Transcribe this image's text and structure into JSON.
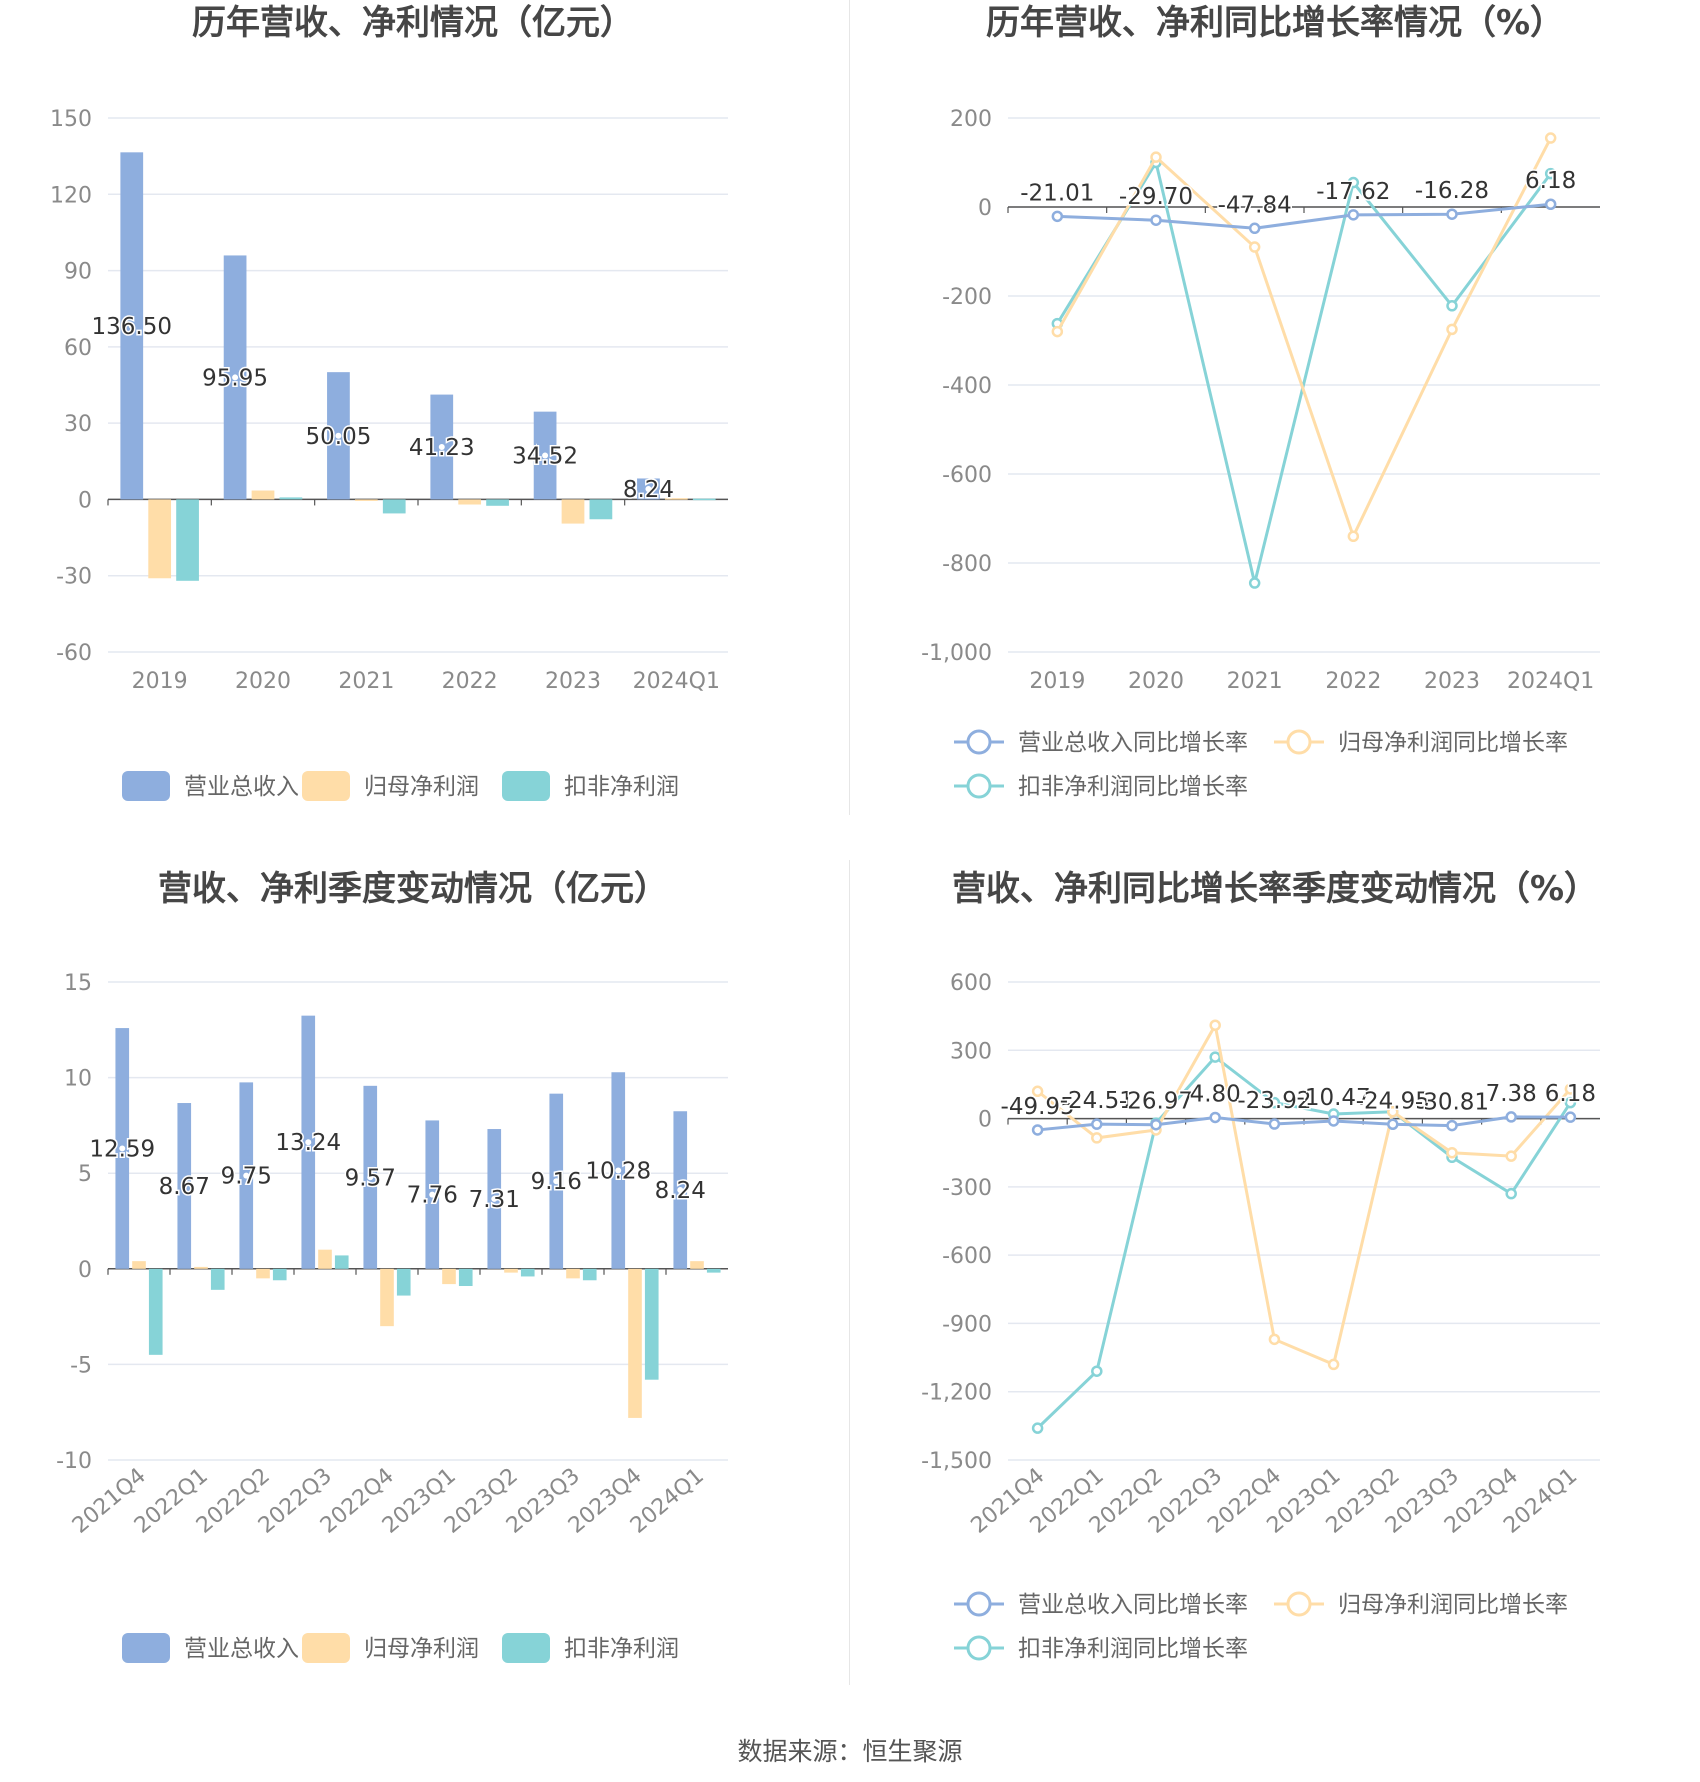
{
  "source_text": "数据来源：恒生聚源",
  "colors": {
    "revenue": "#8EAEDE",
    "net_profit": "#FFDDA8",
    "deducted": "#86D3D7",
    "line_revenue": "#8EAEDE",
    "line_net": "#FFDDA8",
    "line_deducted": "#86D3D7",
    "grid": "#E4E8F0",
    "axis": "#555555"
  },
  "chart_data": [
    {
      "id": "annual-amount",
      "type": "bar",
      "title": "历年营收、净利情况（亿元）",
      "categories": [
        "2019",
        "2020",
        "2021",
        "2022",
        "2023",
        "2024Q1"
      ],
      "ylim": [
        -60,
        150
      ],
      "yticks": [
        150,
        120,
        90,
        60,
        30,
        0,
        -30,
        -60
      ],
      "series": [
        {
          "name": "营业总收入",
          "values": [
            136.5,
            95.95,
            50.05,
            41.23,
            34.52,
            8.24
          ],
          "labels": [
            "136.50",
            "95.95",
            "50.05",
            "41.23",
            "34.52",
            "8.24"
          ]
        },
        {
          "name": "归母净利润",
          "values": [
            -31.0,
            3.5,
            -0.3,
            -2.0,
            -9.5,
            0.5
          ]
        },
        {
          "name": "扣非净利润",
          "values": [
            -32.0,
            0.8,
            -5.5,
            -2.5,
            -7.8,
            0.3
          ]
        }
      ],
      "legend": "bottom",
      "grid": true
    },
    {
      "id": "annual-growth",
      "type": "line",
      "title": "历年营收、净利同比增长率情况（%）",
      "categories": [
        "2019",
        "2020",
        "2021",
        "2022",
        "2023",
        "2024Q1"
      ],
      "ylim": [
        -1000,
        200
      ],
      "yticks": [
        200,
        0,
        -200,
        -400,
        -600,
        -800,
        -1000
      ],
      "ytick_labels": [
        "200",
        "0",
        "-200",
        "-400",
        "-600",
        "-800",
        "-1,000"
      ],
      "series": [
        {
          "name": "营业总收入同比增长率",
          "values": [
            -21.01,
            -29.7,
            -47.84,
            -17.62,
            -16.28,
            6.18
          ],
          "labels": [
            "-21.01",
            "-29.70",
            "-47.84",
            "-17.62",
            "-16.28",
            "6.18"
          ]
        },
        {
          "name": "归母净利润同比增长率",
          "values": [
            -280,
            112,
            -90,
            -740,
            -275,
            155
          ]
        },
        {
          "name": "扣非净利润同比增长率",
          "values": [
            -262,
            100,
            -845,
            55,
            -222,
            75
          ]
        }
      ],
      "legend": "bottom",
      "grid": true
    },
    {
      "id": "quarterly-amount",
      "type": "bar",
      "title": "营收、净利季度变动情况（亿元）",
      "categories": [
        "2021Q4",
        "2022Q1",
        "2022Q2",
        "2022Q3",
        "2022Q4",
        "2023Q1",
        "2023Q2",
        "2023Q3",
        "2023Q4",
        "2024Q1"
      ],
      "ylim": [
        -10,
        15
      ],
      "yticks": [
        15,
        10,
        5,
        0,
        -5,
        -10
      ],
      "series": [
        {
          "name": "营业总收入",
          "values": [
            12.59,
            8.67,
            9.75,
            13.24,
            9.57,
            7.76,
            7.31,
            9.16,
            10.28,
            8.24
          ],
          "labels": [
            "12.59",
            "8.67",
            "9.75",
            "13.24",
            "9.57",
            "7.76",
            "7.31",
            "9.16",
            "10.28",
            "8.24"
          ]
        },
        {
          "name": "归母净利润",
          "values": [
            0.4,
            0.1,
            -0.5,
            1.0,
            -3.0,
            -0.8,
            -0.2,
            -0.5,
            -7.8,
            0.4
          ]
        },
        {
          "name": "扣非净利润",
          "values": [
            -4.5,
            -1.1,
            -0.6,
            0.7,
            -1.4,
            -0.9,
            -0.4,
            -0.6,
            -5.8,
            -0.2
          ]
        }
      ],
      "legend": "bottom",
      "grid": true
    },
    {
      "id": "quarterly-growth",
      "type": "line",
      "title": "营收、净利同比增长率季度变动情况（%）",
      "categories": [
        "2021Q4",
        "2022Q1",
        "2022Q2",
        "2022Q3",
        "2022Q4",
        "2023Q1",
        "2023Q2",
        "2023Q3",
        "2023Q4",
        "2024Q1"
      ],
      "ylim": [
        -1500,
        600
      ],
      "yticks": [
        600,
        300,
        0,
        -300,
        -600,
        -900,
        -1200,
        -1500
      ],
      "ytick_labels": [
        "600",
        "300",
        "0",
        "-300",
        "-600",
        "-900",
        "-1,200",
        "-1,500"
      ],
      "series": [
        {
          "name": "营业总收入同比增长率",
          "values": [
            -49.95,
            -24.51,
            -26.97,
            4.8,
            -23.92,
            -10.47,
            -24.95,
            -30.81,
            7.38,
            6.18
          ],
          "labels": [
            "-49.95",
            "-24.51",
            "-26.97",
            "4.80",
            "-23.92",
            "-10.47",
            "-24.95",
            "-30.81",
            "7.38",
            "6.18"
          ]
        },
        {
          "name": "归母净利润同比增长率",
          "values": [
            120,
            -85,
            -50,
            410,
            -970,
            -1080,
            30,
            -150,
            -165,
            130
          ]
        },
        {
          "name": "扣非净利润同比增长率",
          "values": [
            -1360,
            -1110,
            -20,
            270,
            70,
            20,
            30,
            -170,
            -330,
            70
          ]
        }
      ],
      "legend": "bottom",
      "grid": true
    }
  ]
}
